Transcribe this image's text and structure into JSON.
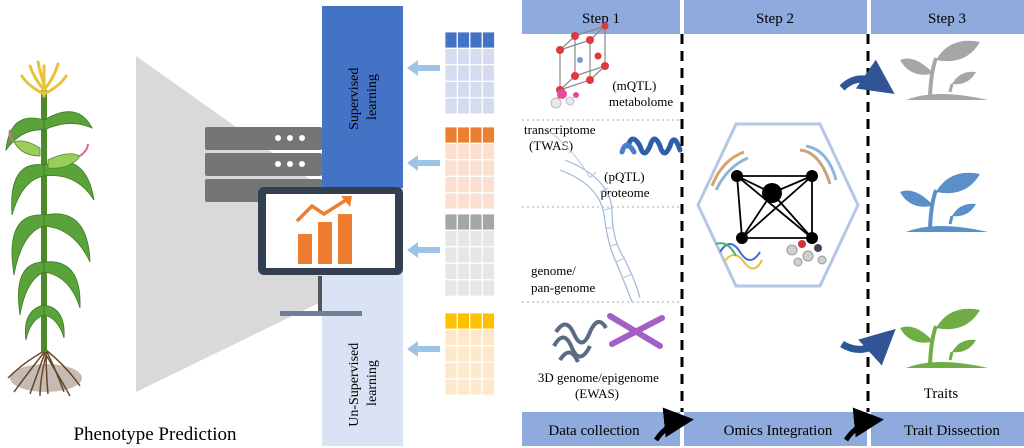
{
  "left": {
    "caption": "Phenotype Prediction"
  },
  "learning": {
    "supervised": "Supervised learning",
    "supervised_lines": [
      "Supervised",
      "learning"
    ],
    "unsupervised": "Un-Supervised learning",
    "unsupervised_lines": [
      "Un-Supervised",
      "learning"
    ]
  },
  "steps": [
    {
      "title": "Step 1",
      "footer": "Data collection"
    },
    {
      "title": "Step 2",
      "footer": "Omics Integration"
    },
    {
      "title": "Step 3",
      "footer": "Trait Dissection"
    }
  ],
  "omics": {
    "metabolome": [
      "(mQTL)",
      "metabolome"
    ],
    "transcriptome": [
      "transcriptome",
      "(TWAS)"
    ],
    "proteome": [
      "(pQTL)",
      "proteome"
    ],
    "genome": [
      "genome/",
      "pan-genome"
    ],
    "epigenome": [
      "3D genome/epigenome",
      "(EWAS)"
    ]
  },
  "traits_label": "Traits",
  "colors": {
    "supervised_band": "#4472c4",
    "unsupervised_band": "#dae3f3",
    "header": "#8faadc",
    "footer": "#8faadc",
    "plant_gray": "#a6a6a6",
    "plant_blue": "#5b8fc7",
    "plant_green": "#70ad47",
    "chart_orange": "#ed7d31",
    "grid_blue": "#4472c4",
    "grid_orange": "#ed7d31",
    "grid_gray": "#a6a6a6",
    "grid_yellow": "#ffc000"
  },
  "icons": [
    "corn-plant-icon",
    "server-icon",
    "monitor-chart-icon",
    "data-grid-icon",
    "crystal-lattice-icon",
    "helix-protein-icon",
    "dna-icon",
    "chromosome-icon",
    "network-icon",
    "seedling-icon",
    "curved-arrow-icon"
  ]
}
